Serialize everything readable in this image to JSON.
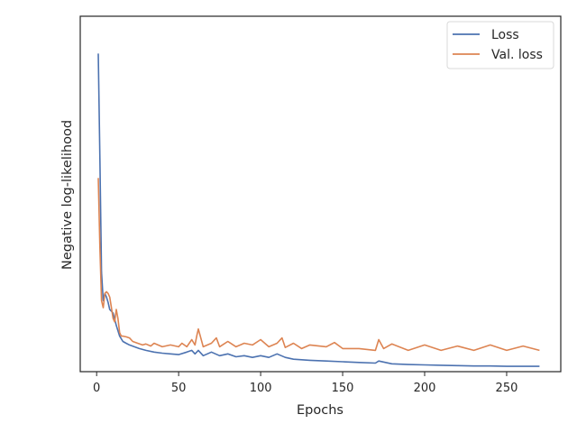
{
  "chart_data": {
    "type": "line",
    "title": "",
    "xlabel": "Epochs",
    "ylabel": "Negative log-likelihood",
    "xlim": [
      -10,
      283
    ],
    "ylim": [
      0.0,
      1.0
    ],
    "xticks": [
      0,
      50,
      100,
      150,
      200,
      250
    ],
    "yticks": [],
    "grid": false,
    "legend_position": "top-right",
    "series": [
      {
        "name": "Loss",
        "color": "#4C72B0",
        "x": [
          1,
          2,
          3,
          4,
          5,
          6,
          7,
          8,
          9,
          10,
          12,
          14,
          16,
          18,
          20,
          23,
          26,
          30,
          35,
          40,
          45,
          50,
          55,
          58,
          60,
          62,
          65,
          70,
          75,
          80,
          85,
          90,
          95,
          100,
          105,
          110,
          115,
          120,
          130,
          140,
          150,
          160,
          170,
          172,
          180,
          190,
          200,
          210,
          220,
          230,
          240,
          250,
          260,
          270
        ],
        "y": [
          0.895,
          0.6,
          0.28,
          0.2,
          0.22,
          0.21,
          0.195,
          0.175,
          0.17,
          0.165,
          0.13,
          0.1,
          0.085,
          0.08,
          0.075,
          0.07,
          0.065,
          0.06,
          0.055,
          0.052,
          0.05,
          0.048,
          0.055,
          0.06,
          0.05,
          0.06,
          0.045,
          0.055,
          0.045,
          0.05,
          0.042,
          0.045,
          0.04,
          0.045,
          0.04,
          0.05,
          0.04,
          0.035,
          0.032,
          0.03,
          0.028,
          0.026,
          0.024,
          0.03,
          0.022,
          0.02,
          0.019,
          0.018,
          0.017,
          0.016,
          0.016,
          0.015,
          0.015,
          0.015
        ]
      },
      {
        "name": "Val. loss",
        "color": "#DD8452",
        "x": [
          1,
          2,
          3,
          4,
          5,
          6,
          7,
          8,
          9,
          10,
          11,
          12,
          13,
          14,
          15,
          16,
          18,
          20,
          22,
          25,
          28,
          30,
          33,
          35,
          40,
          45,
          50,
          52,
          55,
          58,
          60,
          61,
          62,
          65,
          70,
          73,
          75,
          80,
          85,
          90,
          95,
          100,
          105,
          110,
          113,
          115,
          120,
          125,
          130,
          140,
          145,
          150,
          160,
          170,
          172,
          175,
          180,
          190,
          200,
          210,
          220,
          230,
          240,
          250,
          260,
          270
        ],
        "y": [
          0.545,
          0.35,
          0.2,
          0.18,
          0.22,
          0.225,
          0.22,
          0.21,
          0.18,
          0.15,
          0.14,
          0.175,
          0.15,
          0.11,
          0.1,
          0.1,
          0.098,
          0.095,
          0.085,
          0.08,
          0.075,
          0.078,
          0.072,
          0.08,
          0.07,
          0.075,
          0.07,
          0.08,
          0.07,
          0.09,
          0.075,
          0.1,
          0.12,
          0.07,
          0.08,
          0.095,
          0.07,
          0.085,
          0.07,
          0.08,
          0.075,
          0.09,
          0.07,
          0.08,
          0.095,
          0.068,
          0.08,
          0.065,
          0.075,
          0.07,
          0.082,
          0.065,
          0.065,
          0.06,
          0.09,
          0.065,
          0.078,
          0.06,
          0.075,
          0.06,
          0.072,
          0.06,
          0.075,
          0.06,
          0.072,
          0.06
        ]
      }
    ]
  }
}
